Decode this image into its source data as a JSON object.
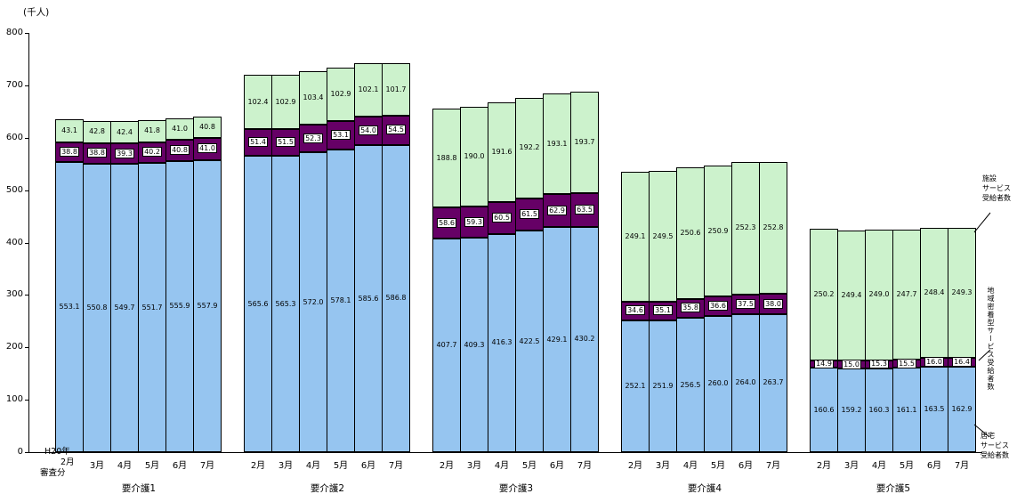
{
  "chart_data": {
    "type": "bar",
    "stacked": true,
    "ylabel": "(千人)",
    "ylim": [
      0,
      800
    ],
    "ytick_interval": 100,
    "yticks": [
      "0",
      "100",
      "200",
      "300",
      "400",
      "500",
      "600",
      "700",
      "800"
    ],
    "grid": false,
    "legend_position": "right",
    "categories": [
      "要介護1",
      "要介護2",
      "要介護3",
      "要介護4",
      "要介護5"
    ],
    "months": [
      "2月",
      "3月",
      "4月",
      "5月",
      "6月",
      "7月"
    ],
    "first_month_label_lines": [
      "H20年",
      "2月",
      "審査分"
    ],
    "series": [
      {
        "name": "居宅サービス受給者数",
        "color": "#96C5F0",
        "label_style": "plain",
        "values": [
          [
            553.1,
            550.8,
            549.7,
            551.7,
            555.9,
            557.9
          ],
          [
            565.6,
            565.3,
            572.0,
            578.1,
            585.6,
            586.8
          ],
          [
            407.7,
            409.3,
            416.3,
            422.5,
            429.1,
            430.2
          ],
          [
            252.1,
            251.9,
            256.5,
            260.0,
            264.0,
            263.7
          ],
          [
            160.6,
            159.2,
            160.3,
            161.1,
            163.5,
            162.9
          ]
        ]
      },
      {
        "name": "地域密着型サービス受給者数",
        "color": "#660066",
        "label_style": "boxed",
        "values": [
          [
            38.8,
            38.8,
            39.3,
            40.2,
            40.8,
            41.0
          ],
          [
            51.4,
            51.5,
            52.3,
            53.1,
            54.0,
            54.5
          ],
          [
            58.6,
            59.3,
            60.5,
            61.5,
            62.9,
            63.5
          ],
          [
            34.6,
            35.1,
            35.8,
            36.6,
            37.5,
            38.0
          ],
          [
            14.9,
            15.0,
            15.3,
            15.5,
            16.0,
            16.4
          ]
        ]
      },
      {
        "name": "施設サービス受給者数",
        "color": "#CCF2CC",
        "label_style": "plain",
        "values": [
          [
            43.1,
            42.8,
            42.4,
            41.8,
            41.0,
            40.8
          ],
          [
            102.4,
            102.9,
            103.4,
            102.9,
            102.1,
            101.7
          ],
          [
            188.8,
            190.0,
            191.6,
            192.2,
            193.1,
            193.7
          ],
          [
            249.1,
            249.5,
            250.6,
            250.9,
            252.3,
            252.8
          ],
          [
            250.2,
            249.4,
            249.0,
            247.7,
            248.4,
            249.3
          ]
        ]
      }
    ]
  },
  "legend": {
    "facility_lines": [
      "施設",
      "サービス",
      "受給者数"
    ],
    "community_vertical": "地域密着型サービス受給者数",
    "home_lines": [
      "居宅",
      "サービス",
      "受給者数"
    ]
  }
}
